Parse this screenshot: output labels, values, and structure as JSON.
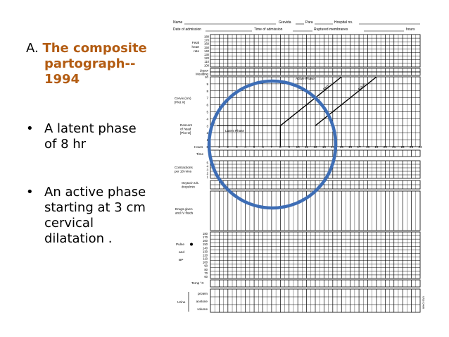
{
  "heading": {
    "prefix": "A. ",
    "title_line1": "The composite",
    "title_line2": "partograph--",
    "title_line3": "1994"
  },
  "bullets": [
    {
      "lines": [
        "A latent phase",
        "of 8 hr"
      ]
    },
    {
      "lines": [
        "An active phase",
        "starting at 3 cm",
        "cervical",
        "dilatation ."
      ]
    }
  ],
  "bullet_glyph": "•",
  "partograph": {
    "header": {
      "name": "Name",
      "gravida": "Gravida",
      "para": "Para",
      "hospital_no": "Hospital no.",
      "date_of_admission": "Date of admission",
      "time_of_admission": "Time of admission",
      "ruptured_membranes": "Ruptured membranes",
      "hours": "hours"
    },
    "fetal_heart_rate_label": [
      "Fetal",
      "heart",
      "rate"
    ],
    "fhr_ticks": [
      "180",
      "170",
      "160",
      "150",
      "140",
      "130",
      "120",
      "110",
      "100"
    ],
    "liquor_label": "Liquor",
    "moulding_label": "Moulding",
    "cervix_label": [
      "Cervix (cm)",
      "[Plot X]"
    ],
    "descent_label": [
      "Descent",
      "of head",
      "[Plot O]"
    ],
    "cervix_ticks": [
      "10",
      "9",
      "8",
      "7",
      "6",
      "5",
      "4",
      "3",
      "2",
      "1",
      "0"
    ],
    "hours_label": "Hours",
    "hour_ticks": [
      "1",
      "2",
      "3",
      "4",
      "5",
      "6",
      "7",
      "8",
      "9",
      "10",
      "11",
      "12",
      "13",
      "14",
      "15",
      "16",
      "17",
      "18",
      "19",
      "20",
      "21",
      "22",
      "23",
      "24"
    ],
    "time_label": "Time",
    "contractions_label": [
      "Contractions",
      "per 10 mins"
    ],
    "contraction_ticks": [
      "5",
      "4",
      "3",
      "2",
      "1"
    ],
    "oxytocin_label": [
      "Oxytocin U/L",
      "drops/min"
    ],
    "drugs_label": [
      "Drugs given",
      "and IV fluids"
    ],
    "pulse_label": "Pulse",
    "and_label": "and",
    "bp_label": "BP",
    "pulse_ticks": [
      "180",
      "170",
      "160",
      "150",
      "140",
      "130",
      "120",
      "110",
      "100",
      "90",
      "80",
      "70",
      "60"
    ],
    "temp_label": "Temp °C",
    "urine_label": "Urine",
    "urine_rows": [
      "protein",
      "acetone",
      "volume"
    ],
    "latent_phase": "Latent Phase",
    "alert_label": "Alert",
    "action_label": "Action",
    "active_label": "Active Phase",
    "form_code": "WHO 93/3",
    "circle_color": "#3d6db5",
    "latent_hours": 8,
    "active_start_cm": 3
  }
}
